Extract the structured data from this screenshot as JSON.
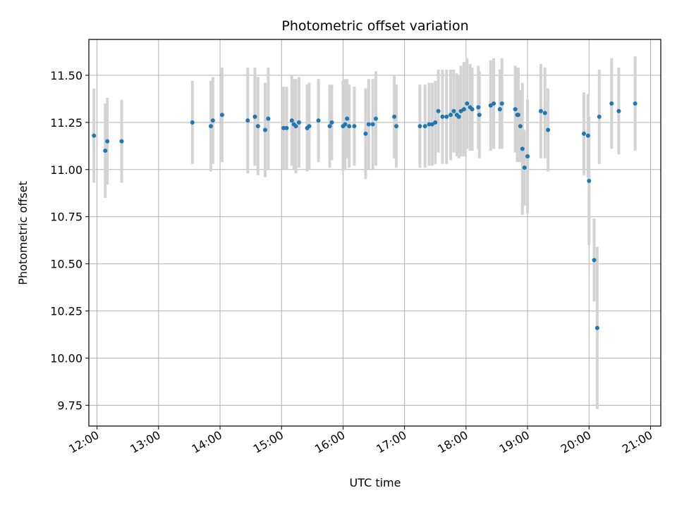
{
  "chart_data": {
    "type": "scatter",
    "title": "Photometric offset variation",
    "xlabel": "UTC time",
    "ylabel": "Photometric offset",
    "grid": true,
    "xlim": [
      "11:52",
      "21:10"
    ],
    "ylim": [
      9.64,
      11.69
    ],
    "xticks": [
      "12:00",
      "13:00",
      "14:00",
      "15:00",
      "16:00",
      "17:00",
      "18:00",
      "19:00",
      "20:00",
      "21:00"
    ],
    "yticks": [
      "9.75",
      "10.00",
      "10.25",
      "10.50",
      "10.75",
      "11.00",
      "11.25",
      "11.50"
    ],
    "colors": {
      "marker": "#1f77b4",
      "errorbar": "#d3d3d3",
      "grid": "#b0b0b0"
    },
    "series": [
      {
        "x": [
          "11:57",
          "12:08",
          "12:10",
          "12:24",
          "13:33",
          "13:51",
          "13:53",
          "14:02",
          "14:27",
          "14:34",
          "14:37",
          "14:44",
          "14:47",
          "15:02",
          "15:05",
          "15:10",
          "15:12",
          "15:14",
          "15:17",
          "15:25",
          "15:27",
          "15:36",
          "15:47",
          "15:49",
          "16:00",
          "16:02",
          "16:04",
          "16:06",
          "16:11",
          "16:22",
          "16:25",
          "16:29",
          "16:32",
          "16:50",
          "16:52",
          "17:15",
          "17:20",
          "17:24",
          "17:27",
          "17:30",
          "17:33",
          "17:37",
          "17:41",
          "17:45",
          "17:48",
          "17:51",
          "17:53",
          "17:55",
          "17:58",
          "18:01",
          "18:04",
          "18:06",
          "18:12",
          "18:13",
          "18:24",
          "18:27",
          "18:33",
          "18:35",
          "18:48",
          "18:50",
          "18:51",
          "18:53",
          "18:55",
          "18:57",
          "19:00",
          "19:13",
          "19:17",
          "19:20",
          "19:55",
          "19:59",
          "20:00",
          "20:05",
          "20:08",
          "20:10",
          "20:22",
          "20:29",
          "20:45"
        ],
        "y": [
          11.18,
          11.1,
          11.15,
          11.15,
          11.25,
          11.23,
          11.26,
          11.29,
          11.26,
          11.28,
          11.23,
          11.21,
          11.27,
          11.22,
          11.22,
          11.26,
          11.24,
          11.23,
          11.25,
          11.22,
          11.23,
          11.26,
          11.23,
          11.25,
          11.23,
          11.24,
          11.27,
          11.23,
          11.23,
          11.19,
          11.24,
          11.24,
          11.27,
          11.28,
          11.23,
          11.23,
          11.23,
          11.24,
          11.24,
          11.25,
          11.31,
          11.28,
          11.28,
          11.29,
          11.31,
          11.29,
          11.28,
          11.31,
          11.32,
          11.35,
          11.33,
          11.32,
          11.33,
          11.29,
          11.34,
          11.35,
          11.32,
          11.35,
          11.32,
          11.29,
          11.29,
          11.23,
          11.11,
          11.01,
          11.07,
          11.31,
          11.3,
          11.21,
          11.19,
          11.18,
          10.94,
          10.52,
          10.16,
          11.28,
          11.35,
          11.31,
          11.35
        ],
        "yerr": [
          0.25,
          0.25,
          0.23,
          0.22,
          0.22,
          0.24,
          0.23,
          0.25,
          0.28,
          0.26,
          0.26,
          0.25,
          0.27,
          0.22,
          0.22,
          0.24,
          0.24,
          0.25,
          0.24,
          0.23,
          0.23,
          0.22,
          0.22,
          0.2,
          0.24,
          0.24,
          0.21,
          0.22,
          0.21,
          0.24,
          0.24,
          0.24,
          0.25,
          0.22,
          0.22,
          0.22,
          0.22,
          0.22,
          0.22,
          0.22,
          0.22,
          0.25,
          0.25,
          0.24,
          0.22,
          0.22,
          0.22,
          0.24,
          0.25,
          0.24,
          0.23,
          0.22,
          0.22,
          0.23,
          0.24,
          0.24,
          0.21,
          0.24,
          0.23,
          0.25,
          0.25,
          0.19,
          0.35,
          0.2,
          0.3,
          0.25,
          0.24,
          0.22,
          0.22,
          0.22,
          0.34,
          0.22,
          0.43,
          0.25,
          0.24,
          0.23,
          0.25
        ]
      }
    ]
  }
}
